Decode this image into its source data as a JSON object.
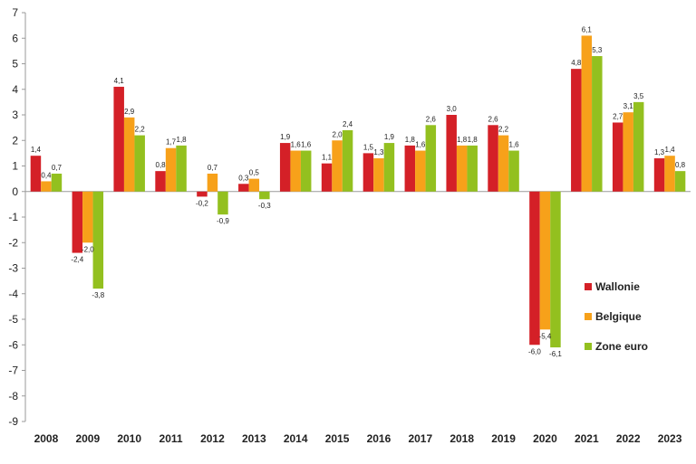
{
  "chart_data": {
    "type": "bar",
    "title": "",
    "xlabel": "",
    "ylabel": "",
    "ylim": [
      -9,
      7
    ],
    "yticks": [
      7,
      6,
      5,
      4,
      3,
      2,
      1,
      0,
      -1,
      -2,
      -3,
      -4,
      -5,
      -6,
      -7,
      -8,
      -9
    ],
    "ytick_labels": [
      "7",
      "6",
      "5",
      "4",
      "3",
      "2",
      "1",
      "0",
      "-1",
      "-2",
      "-3",
      "-4",
      "-5",
      "-6",
      "-7",
      "-8",
      "-9"
    ],
    "categories": [
      "2008",
      "2009",
      "2010",
      "2011",
      "2012",
      "2013",
      "2014",
      "2015",
      "2016",
      "2017",
      "2018",
      "2019",
      "2020",
      "2021",
      "2022",
      "2023"
    ],
    "series": [
      {
        "name": "Wallonie",
        "color": "#d42027",
        "values": [
          1.4,
          -2.4,
          4.1,
          0.8,
          -0.2,
          0.3,
          1.9,
          1.1,
          1.5,
          1.8,
          3.0,
          2.6,
          -6.0,
          4.8,
          2.7,
          1.3
        ],
        "labels": [
          "1,4",
          "-2,4",
          "4,1",
          "0,8",
          "-0,2",
          "0,3",
          "1,9",
          "1,1",
          "1,5",
          "1,8",
          "3,0",
          "2,6",
          "-6,0",
          "4,8",
          "2,7",
          "1,3"
        ]
      },
      {
        "name": "Belgique",
        "color": "#f7a11a",
        "values": [
          0.4,
          -2.0,
          2.9,
          1.7,
          0.7,
          0.5,
          1.6,
          2.0,
          1.3,
          1.6,
          1.8,
          2.2,
          -5.4,
          6.1,
          3.1,
          1.4
        ],
        "labels": [
          "0,4",
          "-2,0",
          "2,9",
          "1,7",
          "0,7",
          "0,5",
          "1,6",
          "2,0",
          "1,3",
          "1,6",
          "1,8",
          "2,2",
          "-5,4",
          "6,1",
          "3,1",
          "1,4"
        ]
      },
      {
        "name": "Zone euro",
        "color": "#93c01f",
        "values": [
          0.7,
          -3.8,
          2.2,
          1.8,
          -0.9,
          -0.3,
          1.6,
          2.4,
          1.9,
          2.6,
          1.8,
          1.6,
          -6.1,
          5.3,
          3.5,
          0.8
        ],
        "labels": [
          "0,7",
          "-3,8",
          "2,2",
          "1,8",
          "-0,9",
          "-0,3",
          "1,6",
          "2,4",
          "1,9",
          "2,6",
          "1,8",
          "1,6",
          "-6,1",
          "5,3",
          "3,5",
          "0,8"
        ]
      }
    ],
    "legend": {
      "placement": "right",
      "entries": [
        "Wallonie",
        "Belgique",
        "Zone euro"
      ]
    },
    "grid": false
  }
}
